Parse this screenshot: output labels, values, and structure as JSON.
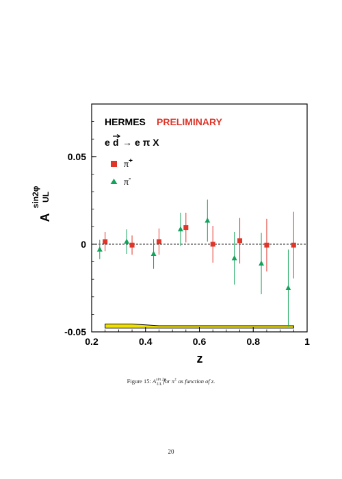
{
  "chart_data": {
    "type": "scatter",
    "title": "HERMES",
    "title_tag": "PRELIMINARY",
    "reaction": {
      "e1": "e",
      "d": "d",
      "arrow": "→",
      "rhs": "e π X"
    },
    "xlabel": "z",
    "ylabel_main": "A",
    "ylabel_sup": "sin2φ",
    "ylabel_sub": "UL",
    "xlim": [
      0.2,
      1.0
    ],
    "ylim": [
      -0.05,
      0.08
    ],
    "x_ticks": [
      0.2,
      0.4,
      0.6,
      0.8,
      1.0
    ],
    "x_tick_labels": [
      "0.2",
      "0.4",
      "0.6",
      "0.8",
      "1"
    ],
    "y_ticks": [
      -0.05,
      0,
      0.05
    ],
    "y_tick_labels": [
      "-0.05",
      "0",
      "0.05"
    ],
    "zero_line": true,
    "grid": false,
    "legend_position": "top-left",
    "series": [
      {
        "name": "π+",
        "legend_base": "π",
        "legend_sup": "+",
        "marker": "square",
        "color": "#e0362a",
        "x": [
          0.25,
          0.35,
          0.45,
          0.55,
          0.65,
          0.75,
          0.85,
          0.95
        ],
        "y": [
          0.0015,
          -0.0005,
          0.0015,
          0.0095,
          0.0,
          0.002,
          -0.0005,
          -0.0005
        ],
        "yerr": [
          0.0055,
          0.0055,
          0.0075,
          0.0085,
          0.0105,
          0.013,
          0.015,
          0.019
        ]
      },
      {
        "name": "π-",
        "legend_base": "π",
        "legend_sup": "-",
        "marker": "triangle",
        "color": "#13a35a",
        "x": [
          0.23,
          0.33,
          0.43,
          0.53,
          0.63,
          0.73,
          0.83,
          0.93
        ],
        "y": [
          -0.003,
          0.0015,
          -0.0055,
          0.0085,
          0.0135,
          -0.008,
          -0.011,
          -0.025
        ],
        "yerr": [
          0.0055,
          0.007,
          0.0085,
          0.0095,
          0.012,
          0.015,
          0.0175,
          0.022
        ]
      }
    ],
    "systematic_band": {
      "color": "#f0e000",
      "x": [
        0.25,
        0.35,
        0.45,
        0.55,
        0.65,
        0.75,
        0.85,
        0.95
      ],
      "upper": [
        -0.0455,
        -0.0455,
        -0.0465,
        -0.0465,
        -0.0465,
        -0.0465,
        -0.0465,
        -0.0465
      ],
      "lower": [
        -0.0478,
        -0.0478,
        -0.0478,
        -0.0478,
        -0.0478,
        -0.0478,
        -0.0478,
        -0.0478
      ]
    }
  },
  "caption": {
    "prefix": "Figure 15:",
    "symbol": "A",
    "symbol_sup": "sin 2φ",
    "symbol_sub": "UL",
    "for_text": "for",
    "pi": "π",
    "pi_sup": "±",
    "suffix": "as function of z."
  },
  "page_number": "20"
}
